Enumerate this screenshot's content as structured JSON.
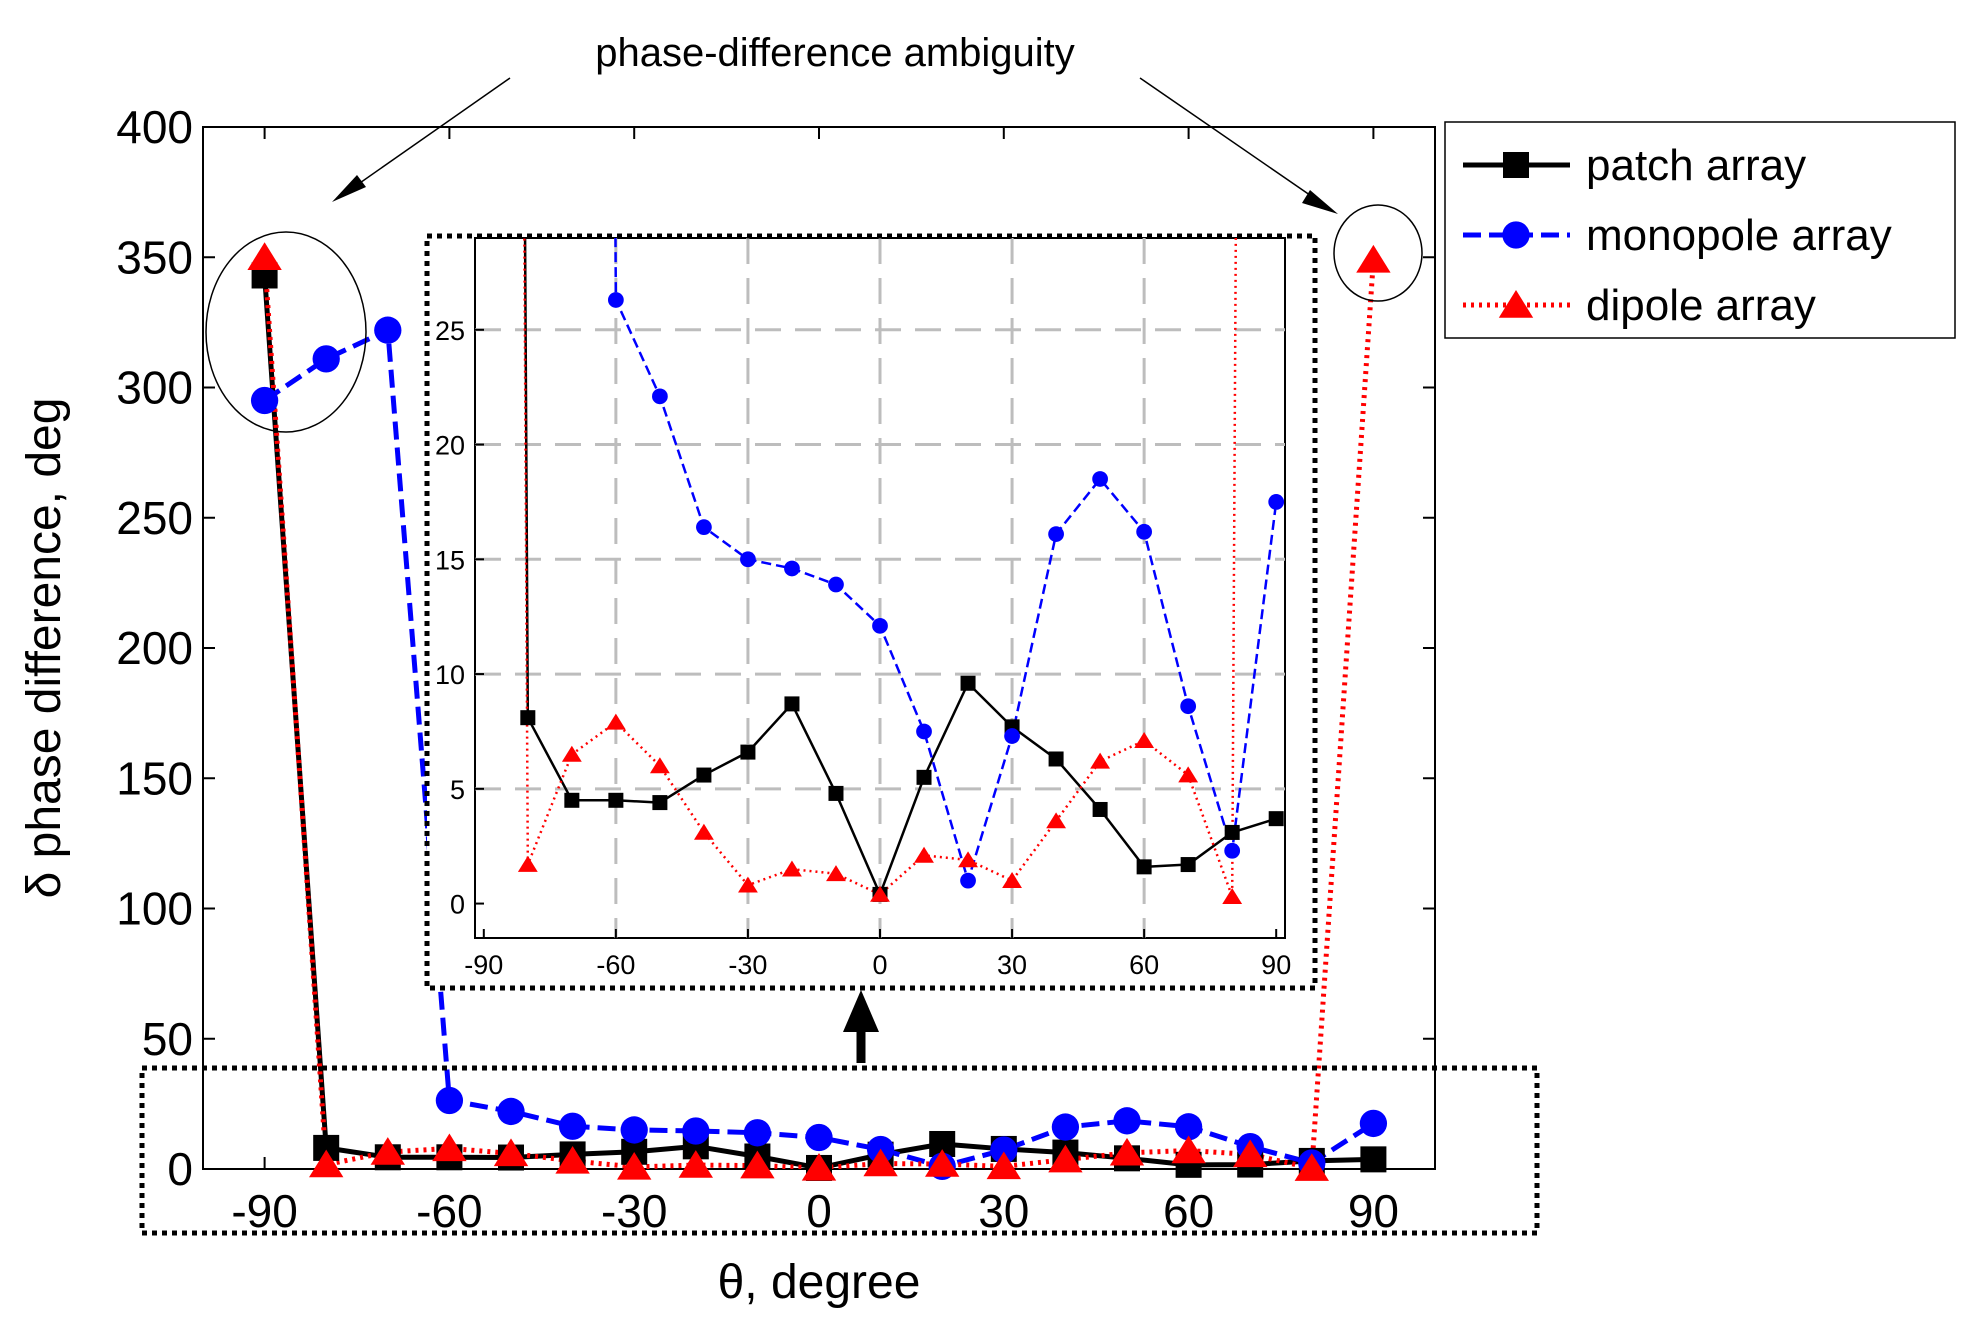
{
  "chart_data": {
    "type": "line",
    "annotation": "phase-difference ambiguity",
    "x": [
      -90,
      -80,
      -70,
      -60,
      -50,
      -40,
      -30,
      -20,
      -10,
      0,
      10,
      20,
      30,
      40,
      50,
      60,
      70,
      80,
      90
    ],
    "series": [
      {
        "name": "patch array",
        "color": "#000000",
        "marker": "square",
        "line": "solid",
        "values": [
          343,
          8.1,
          4.5,
          4.5,
          4.4,
          5.6,
          6.6,
          8.7,
          4.8,
          0.4,
          5.5,
          9.6,
          7.7,
          6.3,
          4.1,
          1.6,
          1.7,
          3.1,
          3.7
        ]
      },
      {
        "name": "monopole array",
        "color": "#0000ff",
        "marker": "circle",
        "line": "dashed",
        "values": [
          295,
          311,
          322,
          26.3,
          22.1,
          16.4,
          15.0,
          14.6,
          13.9,
          12.1,
          7.5,
          1.0,
          7.3,
          16.1,
          18.5,
          16.2,
          8.6,
          2.3,
          17.5
        ]
      },
      {
        "name": "dipole array",
        "color": "#ff0000",
        "marker": "triangle",
        "line": "dotted",
        "values": [
          350,
          1.7,
          6.5,
          7.9,
          6.0,
          3.1,
          0.8,
          1.5,
          1.3,
          0.4,
          2.1,
          1.9,
          1.0,
          3.6,
          6.2,
          7.1,
          5.6,
          0.3,
          349
        ]
      }
    ],
    "main_axes": {
      "xlabel": "θ, degree",
      "ylabel": "δ phase difference, deg",
      "xlim": [
        -100,
        100
      ],
      "ylim": [
        0,
        400
      ],
      "xticks": [
        -90,
        -60,
        -30,
        0,
        30,
        60,
        90
      ],
      "yticks": [
        0,
        50,
        100,
        150,
        200,
        250,
        300,
        350,
        400
      ],
      "xtick_labels": [
        "-90",
        "-60",
        "-30",
        "0",
        "30",
        "60",
        "90"
      ],
      "ytick_labels": [
        "0",
        "50",
        "100",
        "150",
        "200",
        "250",
        "300",
        "350",
        "400"
      ]
    },
    "inset_axes": {
      "xlim": [
        -92,
        92
      ],
      "ylim": [
        -1.5,
        29
      ],
      "grid": true,
      "xticks": [
        -90,
        -60,
        -30,
        0,
        30,
        60,
        90
      ],
      "yticks": [
        0,
        5,
        10,
        15,
        20,
        25
      ],
      "xtick_labels": [
        "-90",
        "-60",
        "-30",
        "0",
        "30",
        "60",
        "90"
      ],
      "ytick_labels": [
        "0",
        "5",
        "10",
        "15",
        "20",
        "25"
      ]
    }
  }
}
